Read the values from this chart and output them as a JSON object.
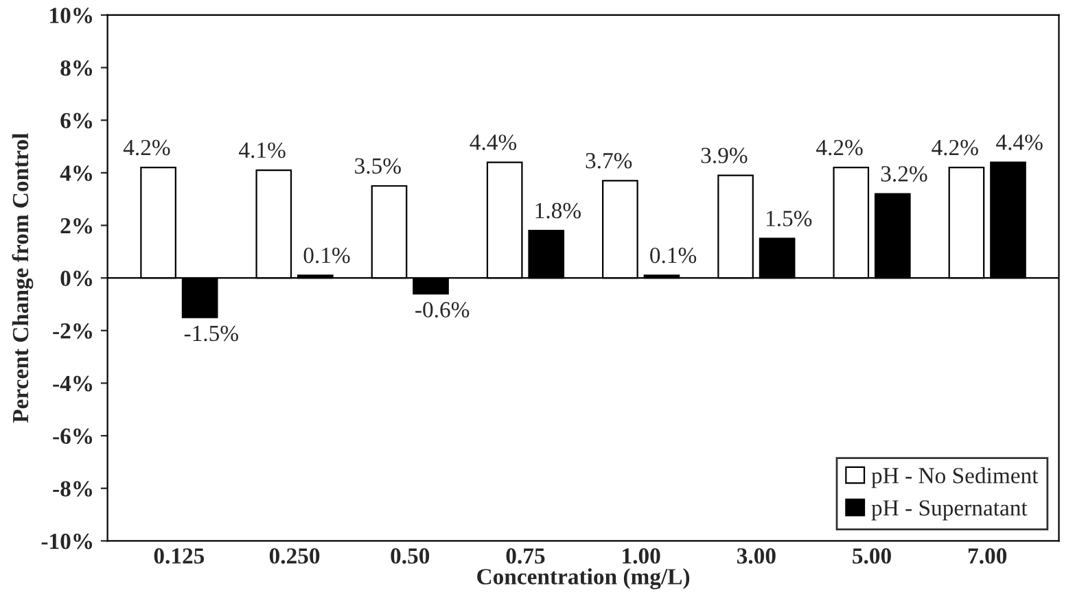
{
  "chart_data": {
    "type": "bar",
    "ylabel": "Percent Change from Control",
    "xlabel": "Concentration (mg/L)",
    "categories": [
      "0.125",
      "0.250",
      "0.50",
      "0.75",
      "1.00",
      "3.00",
      "5.00",
      "7.00"
    ],
    "series": [
      {
        "name": "pH - No Sediment",
        "color": "#ffffff",
        "values": [
          4.2,
          4.1,
          3.5,
          4.4,
          3.7,
          3.9,
          4.2,
          4.2
        ],
        "value_labels": [
          "4.2%",
          "4.1%",
          "3.5%",
          "4.4%",
          "3.7%",
          "3.9%",
          "4.2%",
          "4.2%"
        ]
      },
      {
        "name": "pH - Supernatant",
        "color": "#000000",
        "values": [
          -1.5,
          0.1,
          -0.6,
          1.8,
          0.1,
          1.5,
          3.2,
          4.4
        ],
        "value_labels": [
          "-1.5%",
          "0.1%",
          "-0.6%",
          "1.8%",
          "0.1%",
          "1.5%",
          "3.2%",
          "4.4%"
        ]
      }
    ],
    "ylim": [
      -10,
      10
    ],
    "yticks": [
      {
        "value": -10,
        "label": "-10%"
      },
      {
        "value": -8,
        "label": "-8%"
      },
      {
        "value": -6,
        "label": "-6%"
      },
      {
        "value": -4,
        "label": "-4%"
      },
      {
        "value": -2,
        "label": "-2%"
      },
      {
        "value": 0,
        "label": "0%"
      },
      {
        "value": 2,
        "label": "2%"
      },
      {
        "value": 4,
        "label": "4%"
      },
      {
        "value": 6,
        "label": "6%"
      },
      {
        "value": 8,
        "label": "8%"
      },
      {
        "value": 10,
        "label": "10%"
      }
    ],
    "ref_lines": [
      {
        "axis": "y",
        "value": 0
      }
    ],
    "legend": "bottom right",
    "grid": false
  }
}
